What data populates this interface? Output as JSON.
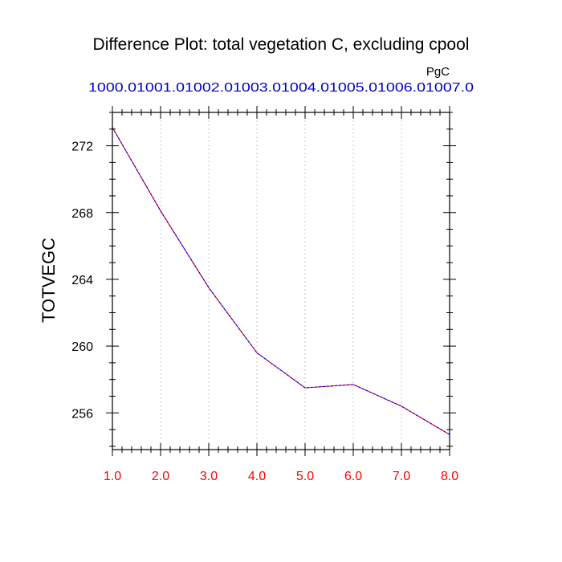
{
  "chart_data": {
    "type": "line",
    "title": "Difference Plot: total vegetation C, excluding cpool",
    "units_label": "PgC",
    "ylabel": "TOTVEGC",
    "xlabel": "",
    "x": [
      1.0,
      2.0,
      3.0,
      4.0,
      5.0,
      6.0,
      7.0,
      8.0
    ],
    "x_tick_labels": [
      "1.0",
      "2.0",
      "3.0",
      "4.0",
      "5.0",
      "6.0",
      "7.0",
      "8.0"
    ],
    "top_tick_labels": [
      "1000.0",
      "1001.0",
      "1002.0",
      "1003.0",
      "1004.0",
      "1005.0",
      "1006.0",
      "1007.0"
    ],
    "xlim": [
      1.0,
      8.0
    ],
    "ylim": [
      253.8,
      274.0
    ],
    "y_ticks": [
      256,
      260,
      264,
      268,
      272
    ],
    "y_tick_labels": [
      "256",
      "260",
      "264",
      "268",
      "272"
    ],
    "series": [
      {
        "values": [
          273.1,
          268.1,
          263.5,
          259.6,
          257.5,
          257.7,
          256.4,
          254.7
        ],
        "color": "#ff0000",
        "overlay_color": "#0000ff",
        "style": "dashed"
      }
    ],
    "grid": "vertical-dotted",
    "colors": {
      "bottom_ticks": "#ff0000",
      "top_ticks": "#0000cc",
      "axis": "#000000",
      "grid": "#c8c8c8"
    }
  }
}
